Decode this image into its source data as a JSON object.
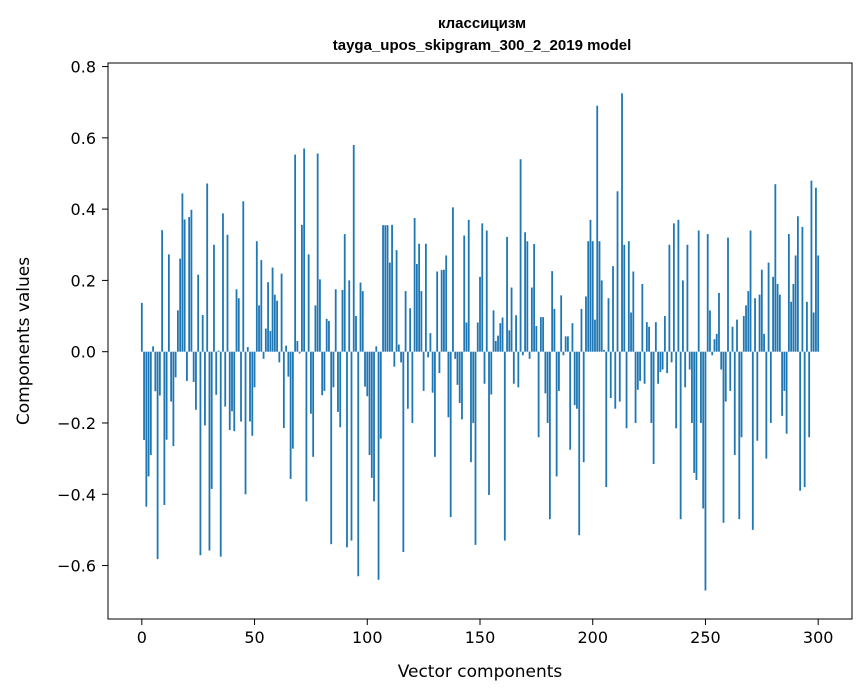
{
  "chart_data": {
    "type": "bar",
    "title": "классицизм",
    "subtitle": "tayga_upos_skipgram_300_2_2019 model",
    "xlabel": "Vector components",
    "ylabel": "Components values",
    "xlim": [
      -15,
      315
    ],
    "ylim": [
      -0.75,
      0.81
    ],
    "x_ticks": [
      0,
      50,
      100,
      150,
      200,
      250,
      300
    ],
    "y_ticks": [
      -0.6,
      -0.4,
      -0.2,
      0.0,
      0.2,
      0.4,
      0.6,
      0.8
    ],
    "x_tick_labels": [
      "0",
      "50",
      "100",
      "150",
      "200",
      "250",
      "300"
    ],
    "y_tick_labels": [
      "−0.6",
      "−0.4",
      "−0.2",
      "0.0",
      "0.2",
      "0.4",
      "0.6",
      "0.8"
    ],
    "bar_color": "#1f77b4",
    "grid": false,
    "values": [
      0.137,
      -0.248,
      -0.435,
      -0.35,
      -0.29,
      0.015,
      -0.111,
      -0.582,
      -0.123,
      0.341,
      -0.43,
      -0.247,
      0.273,
      -0.14,
      -0.265,
      -0.072,
      0.116,
      0.261,
      0.444,
      0.371,
      -0.082,
      0.378,
      0.398,
      -0.085,
      -0.163,
      0.216,
      -0.571,
      0.103,
      -0.207,
      0.472,
      -0.558,
      -0.385,
      0.3,
      -0.121,
      0.003,
      -0.575,
      0.388,
      -0.154,
      0.328,
      -0.22,
      -0.167,
      -0.223,
      0.175,
      0.15,
      -0.196,
      0.422,
      -0.4,
      0.013,
      -0.196,
      -0.236,
      -0.1,
      0.31,
      0.13,
      0.257,
      -0.02,
      0.065,
      0.195,
      0.058,
      0.236,
      0.16,
      0.143,
      -0.03,
      0.219,
      -0.214,
      0.017,
      -0.07,
      -0.357,
      -0.272,
      0.553,
      0.03,
      -0.005,
      0.356,
      0.57,
      -0.42,
      0.273,
      -0.174,
      -0.295,
      0.13,
      0.556,
      0.203,
      -0.122,
      -0.11,
      0.092,
      0.086,
      -0.54,
      -0.1,
      0.175,
      -0.169,
      -0.212,
      0.173,
      0.33,
      -0.549,
      0.2,
      -0.53,
      0.58,
      0.1,
      -0.63,
      0.194,
      0.17,
      -0.098,
      -0.125,
      -0.29,
      -0.354,
      -0.42,
      0.015,
      -0.64,
      -0.244,
      0.355,
      0.355,
      0.355,
      0.25,
      0.356,
      -0.042,
      0.285,
      0.02,
      -0.03,
      -0.562,
      0.17,
      -0.16,
      0.122,
      -0.2,
      0.375,
      0.246,
      0.303,
      0.17,
      -0.11,
      0.303,
      -0.016,
      0.052,
      -0.115,
      -0.295,
      0.225,
      -0.06,
      0.229,
      0.23,
      0.27,
      -0.184,
      -0.464,
      0.405,
      -0.02,
      -0.093,
      -0.144,
      -0.19,
      0.326,
      0.082,
      0.37,
      -0.31,
      -0.2,
      -0.542,
      0.082,
      0.21,
      0.36,
      -0.09,
      0.34,
      -0.402,
      -0.12,
      0.116,
      0.03,
      0.045,
      0.08,
      0.096,
      -0.53,
      0.322,
      0.06,
      0.18,
      -0.09,
      0.102,
      -0.1,
      0.54,
      -0.01,
      0.335,
      0.31,
      -0.02,
      0.18,
      0.302,
      0.072,
      -0.24,
      0.097,
      0.097,
      -0.117,
      -0.2,
      -0.47,
      0.226,
      0.12,
      -0.35,
      -0.11,
      0.158,
      -0.01,
      0.043,
      0.043,
      -0.275,
      0.08,
      -0.15,
      -0.16,
      -0.515,
      0.12,
      -0.31,
      0.155,
      0.31,
      0.37,
      0.31,
      0.09,
      0.69,
      0.31,
      0.2,
      0.005,
      -0.38,
      0.15,
      -0.13,
      0.24,
      -0.16,
      0.45,
      -0.14,
      0.725,
      0.3,
      -0.215,
      0.31,
      0.11,
      0.225,
      -0.2,
      -0.107,
      -0.082,
      0.19,
      -0.09,
      0.083,
      0.07,
      -0.2,
      -0.315,
      0.083,
      -0.09,
      -0.057,
      -0.05,
      0.1,
      -0.06,
      0.3,
      -0.03,
      0.36,
      -0.215,
      0.37,
      -0.47,
      0.2,
      -0.1,
      0.3,
      -0.05,
      -0.2,
      -0.34,
      -0.36,
      0.34,
      -0.2,
      -0.44,
      -0.67,
      0.33,
      0.116,
      -0.01,
      0.035,
      0.05,
      0.165,
      -0.05,
      -0.48,
      -0.14,
      0.32,
      -0.11,
      0.07,
      -0.29,
      0.09,
      -0.47,
      -0.24,
      0.1,
      0.13,
      0.17,
      0.34,
      -0.5,
      0.15,
      -0.25,
      0.16,
      0.23,
      0.05,
      -0.3,
      0.25,
      -0.2,
      0.21,
      0.47,
      0.19,
      0.16,
      -0.18,
      -0.11,
      -0.23,
      0.33,
      0.14,
      0.19,
      0.27,
      0.38,
      -0.39,
      0.35,
      -0.38,
      0.14,
      -0.24,
      0.48,
      0.11,
      0.46,
      0.27
    ]
  }
}
